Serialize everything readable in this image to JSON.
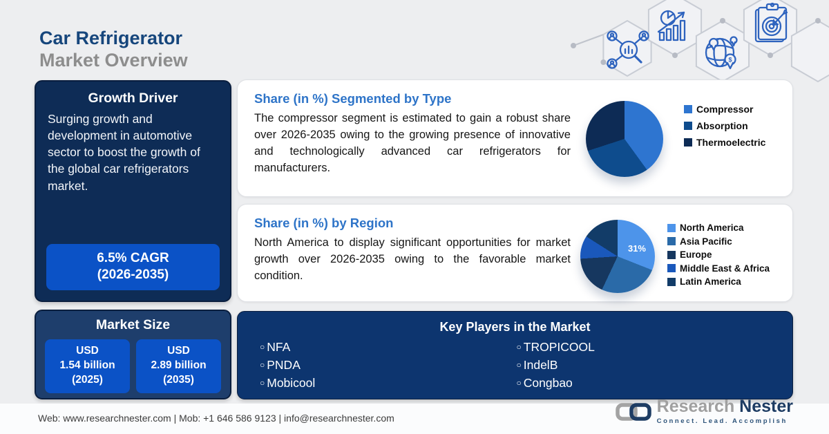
{
  "header": {
    "title_line1": "Car Refrigerator",
    "title_line2": "Market Overview"
  },
  "growth_driver": {
    "heading": "Growth Driver",
    "body": "Surging growth and development in automotive sector to boost the growth of the global car refrigerators market.",
    "cagr_line1": "6.5% CAGR",
    "cagr_line2": "(2026-2035)"
  },
  "market_size": {
    "heading": "Market Size",
    "values": [
      {
        "currency": "USD",
        "amount": "1.54 billion",
        "year": "(2025)"
      },
      {
        "currency": "USD",
        "amount": "2.89 billion",
        "year": "(2035)"
      }
    ]
  },
  "type_card": {
    "heading": "Share (in %) Segmented by Type",
    "body": "The compressor segment is estimated to gain a robust share over 2026-2035 owing to the growing presence of innovative and technologically advanced car refrigerators for manufacturers."
  },
  "region_card": {
    "heading": "Share (in %) by Region",
    "body": "North America to display significant opportunities for market growth over 2026-2035 owing to the favorable market condition."
  },
  "key_players": {
    "heading": "Key Players in the Market",
    "column1": [
      "NFA",
      "PNDA",
      "Mobicool"
    ],
    "column2": [
      "TROPICOOL",
      "IndelB",
      "Congbao"
    ]
  },
  "footer": {
    "contact": "Web: www.researchnester.com | Mob: +1 646 586 9123 | info@researchnester.com",
    "brand_gray": "Research",
    "brand_navy": "Nester",
    "tagline": "Connect. Lead. Accomplish"
  },
  "colors": {
    "accent_blue": "#0b52c6",
    "dark_navy_panel": "#0e2c56",
    "market_size_panel": "#1e3e6c",
    "key_players_panel": "#0d356f",
    "card_heading_blue": "#2e74c8",
    "title_navy": "#16467c",
    "title_gray": "#8d8d8d"
  },
  "chart_data": [
    {
      "type": "pie",
      "title": "Share (in %) Segmented by Type",
      "labels": [
        "Compressor",
        "Absorption",
        "Thermoelectric"
      ],
      "values": [
        40,
        30,
        30
      ],
      "colors": [
        "#2e75d0",
        "#0e4c8d",
        "#0d2b55"
      ],
      "value_labels": [
        "",
        "",
        ""
      ],
      "legend_position": "right"
    },
    {
      "type": "pie",
      "title": "Share (in %) by Region",
      "labels": [
        "North America",
        "Asia Pacific",
        "Europe",
        "Middle East & Africa",
        "Latin America"
      ],
      "values": [
        31,
        26,
        17,
        10,
        16
      ],
      "colors": [
        "#4d94ea",
        "#2a6aa8",
        "#16375f",
        "#1a58bb",
        "#123c68"
      ],
      "value_labels": [
        "31%",
        "",
        "",
        "",
        ""
      ],
      "legend_position": "right"
    }
  ]
}
